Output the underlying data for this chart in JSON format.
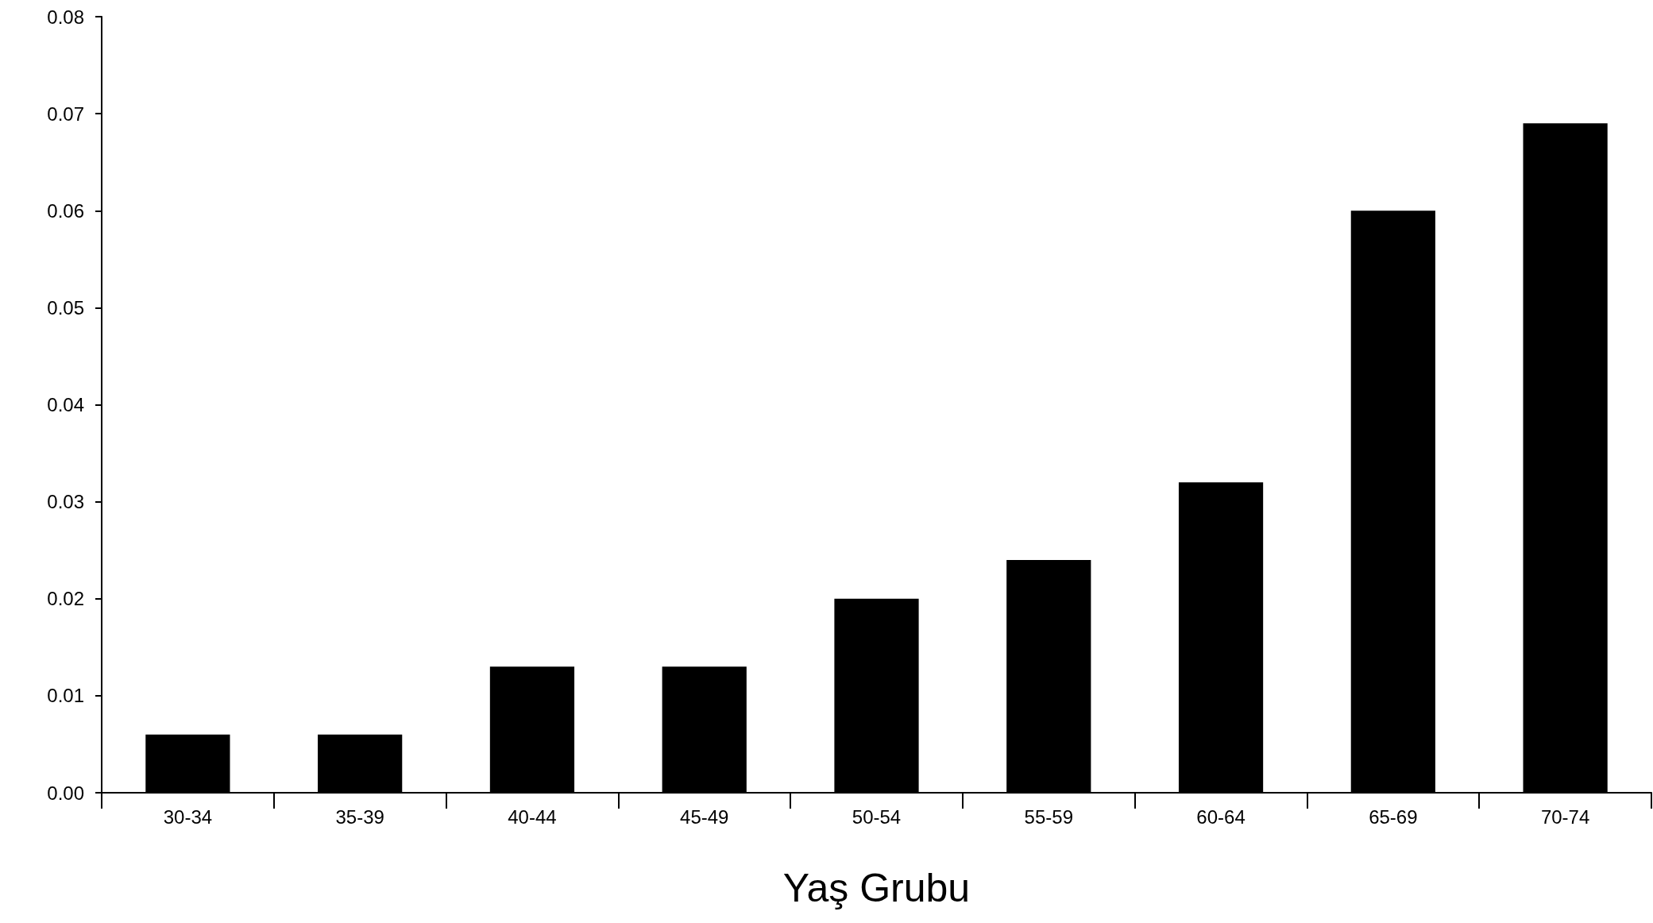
{
  "chart_data": {
    "type": "bar",
    "xlabel": "Yaş Grubu",
    "categories": [
      "30-34",
      "35-39",
      "40-44",
      "45-49",
      "50-54",
      "55-59",
      "60-64",
      "65-69",
      "70-74"
    ],
    "values": [
      0.006,
      0.006,
      0.013,
      0.013,
      0.02,
      0.024,
      0.032,
      0.06,
      0.069
    ],
    "color": "#000000",
    "ylim": [
      0,
      0.08
    ],
    "yticks": [
      {
        "value": 0,
        "label": "0.00"
      },
      {
        "value": 0.01,
        "label": "0.01"
      },
      {
        "value": 0.02,
        "label": "0.02"
      },
      {
        "value": 0.03,
        "label": "0.03"
      },
      {
        "value": 0.04,
        "label": "0.04"
      },
      {
        "value": 0.05,
        "label": "0.05"
      },
      {
        "value": 0.06,
        "label": "0.06"
      },
      {
        "value": 0.07,
        "label": "0.07"
      },
      {
        "value": 0.08,
        "label": "0.08"
      }
    ],
    "grid": false
  }
}
